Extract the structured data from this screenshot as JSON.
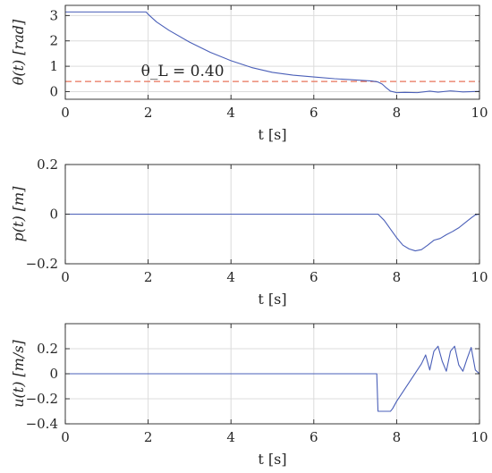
{
  "chart_data": [
    {
      "type": "line",
      "ylabel": "θ(t) [rad]",
      "xlabel": "t [s]",
      "xlim": [
        0,
        10
      ],
      "ylim": [
        -0.3,
        3.4
      ],
      "x_ticks": [
        0,
        2,
        4,
        6,
        8,
        10
      ],
      "y_ticks": [
        0,
        1,
        2,
        3
      ],
      "grid": true,
      "series": [
        {
          "color": "#4a5fb8",
          "x": [
            0,
            1.95,
            2.0,
            2.2,
            2.5,
            3.0,
            3.5,
            4.0,
            4.5,
            5.0,
            5.5,
            6.0,
            6.5,
            7.0,
            7.4,
            7.55,
            7.65,
            7.75,
            7.85,
            8.0,
            8.2,
            8.5,
            8.8,
            9.0,
            9.3,
            9.6,
            10.0
          ],
          "y": [
            3.14,
            3.14,
            3.05,
            2.75,
            2.42,
            1.95,
            1.55,
            1.22,
            0.95,
            0.76,
            0.65,
            0.58,
            0.51,
            0.46,
            0.42,
            0.38,
            0.3,
            0.15,
            0.02,
            -0.04,
            -0.03,
            -0.04,
            0.02,
            -0.02,
            0.03,
            -0.01,
            0.01
          ]
        }
      ],
      "reference_line": {
        "y": 0.4,
        "color": "#e8735a",
        "style": "dashed"
      },
      "annotation": {
        "text": "θ_L = 0.40",
        "x": 2.0,
        "y": 0.62
      }
    },
    {
      "type": "line",
      "ylabel": "p(t) [m]",
      "xlabel": "t [s]",
      "xlim": [
        0,
        10
      ],
      "ylim": [
        -0.2,
        0.2
      ],
      "x_ticks": [
        0,
        2,
        4,
        6,
        8,
        10
      ],
      "y_ticks": [
        -0.2,
        0,
        0.2
      ],
      "y_tick_labels": [
        "−0.2",
        "0",
        "0.2"
      ],
      "grid": true,
      "series": [
        {
          "color": "#4a5fb8",
          "x": [
            0,
            7.55,
            7.7,
            7.85,
            8.0,
            8.15,
            8.3,
            8.45,
            8.6,
            8.75,
            8.9,
            9.05,
            9.2,
            9.35,
            9.5,
            9.65,
            9.8,
            9.9,
            10.0
          ],
          "y": [
            0,
            0,
            -0.025,
            -0.06,
            -0.095,
            -0.125,
            -0.14,
            -0.148,
            -0.143,
            -0.125,
            -0.105,
            -0.098,
            -0.083,
            -0.07,
            -0.055,
            -0.035,
            -0.015,
            -0.003,
            0.0
          ]
        }
      ]
    },
    {
      "type": "line",
      "ylabel": "u(t) [m/s]",
      "xlabel": "t [s]",
      "xlim": [
        0,
        10
      ],
      "ylim": [
        -0.4,
        0.4
      ],
      "x_ticks": [
        0,
        2,
        4,
        6,
        8,
        10
      ],
      "y_ticks": [
        -0.4,
        -0.2,
        0,
        0.2
      ],
      "y_tick_labels": [
        "−0.4",
        "−0.2",
        "0",
        "0.2"
      ],
      "grid": true,
      "series": [
        {
          "color": "#4a5fb8",
          "x": [
            0,
            7.52,
            7.55,
            7.6,
            7.85,
            7.9,
            8.0,
            8.2,
            8.4,
            8.6,
            8.7,
            8.8,
            8.9,
            9.0,
            9.1,
            9.2,
            9.3,
            9.4,
            9.5,
            9.6,
            9.7,
            9.8,
            9.9,
            10.0
          ],
          "y": [
            0,
            0,
            -0.3,
            -0.3,
            -0.3,
            -0.28,
            -0.22,
            -0.12,
            -0.02,
            0.08,
            0.15,
            0.03,
            0.18,
            0.22,
            0.1,
            0.02,
            0.18,
            0.22,
            0.07,
            0.02,
            0.12,
            0.21,
            0.03,
            0.0
          ]
        }
      ]
    }
  ]
}
